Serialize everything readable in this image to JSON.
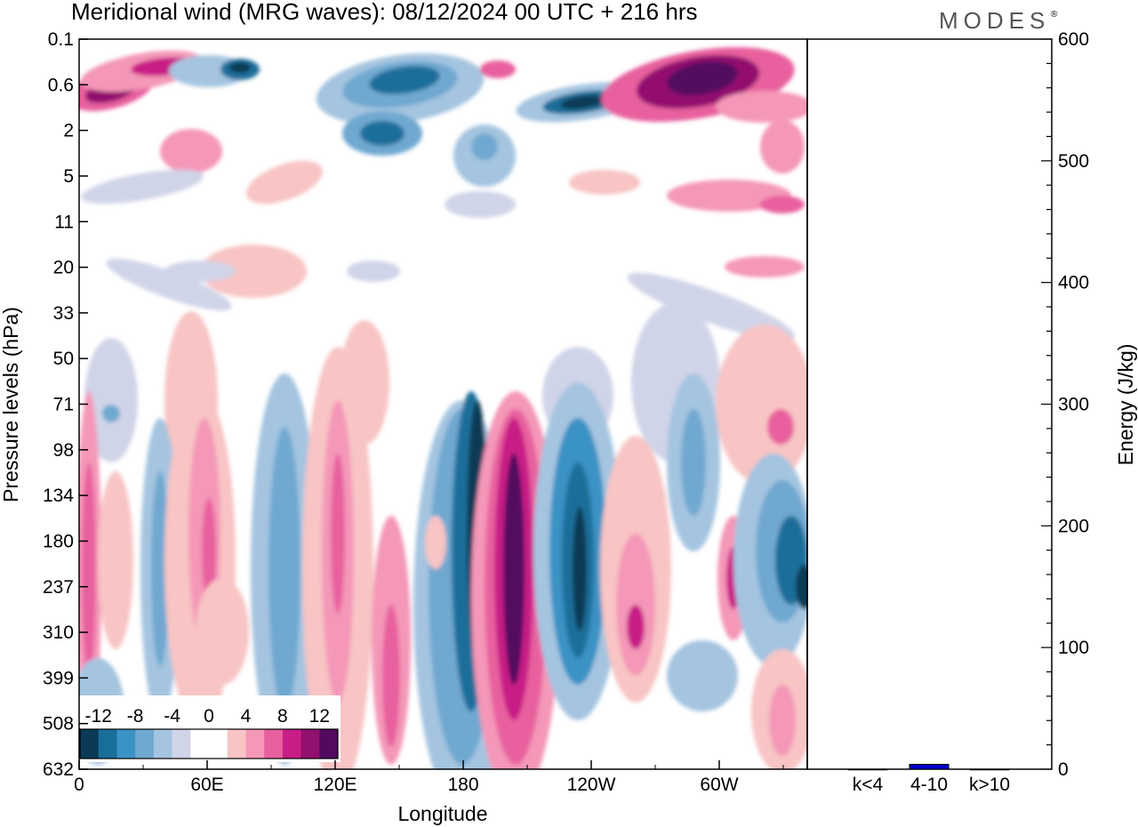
{
  "chart_data": {
    "type": "heatmap",
    "title": "Meridional wind (MRG waves):  08/12/2024  00 UTC  + 216 hrs",
    "brand": "MODES",
    "xlabel": "Longitude",
    "ylabel": "Pressure levels (hPa)",
    "x_ticks": [
      "0",
      "60E",
      "120E",
      "180",
      "120W",
      "60W"
    ],
    "y_ticks": [
      "0.1",
      "0.6",
      "2",
      "5",
      "11",
      "20",
      "33",
      "50",
      "71",
      "98",
      "134",
      "180",
      "237",
      "310",
      "399",
      "508",
      "632"
    ],
    "color_levels": [
      "-12",
      "-8",
      "-4",
      "0",
      "4",
      "8",
      "12"
    ],
    "colors": [
      "#0a3a55",
      "#1a6e9a",
      "#3b92c4",
      "#6fa8d0",
      "#a4c4e0",
      "#d0d4e8",
      "#ffffff",
      "#ffffff",
      "#f8c4c4",
      "#f497b8",
      "#e8609e",
      "#c81e86",
      "#92106e",
      "#520a5e"
    ],
    "energy_panel": {
      "ylabel": "Energy (J/kg)",
      "ylim": [
        0,
        600
      ],
      "y_ticks": [
        "0",
        "100",
        "200",
        "300",
        "400",
        "500",
        "600"
      ],
      "categories": [
        "k<4",
        "4-10",
        "k>10"
      ],
      "values": [
        0,
        4,
        0
      ],
      "bar_color": "#0000cc"
    }
  }
}
